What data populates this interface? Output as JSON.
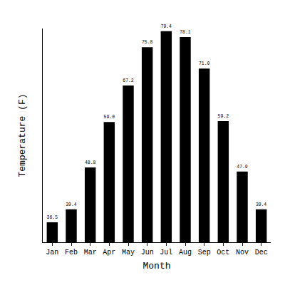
{
  "chart_data": {
    "type": "bar",
    "x_label": "Month",
    "y_label": "Temperature (F)",
    "categories": [
      "Jan",
      "Feb",
      "Mar",
      "Apr",
      "May",
      "Jun",
      "Jul",
      "Aug",
      "Sep",
      "Oct",
      "Nov",
      "Dec"
    ],
    "values": [
      36.5,
      39.4,
      48.8,
      59.0,
      67.2,
      75.8,
      79.4,
      78.1,
      71.0,
      59.2,
      47.9,
      39.4
    ],
    "value_labels": [
      "36.5",
      "39.4",
      "48.8",
      "59.0",
      "67.2",
      "75.8",
      "79.4",
      "78.1",
      "71.0",
      "59.2",
      "47.9",
      "39.4"
    ],
    "color": "#000000",
    "ylim": [
      32,
      80
    ],
    "grid": false,
    "data_labels": true,
    "tick_labels": "x"
  }
}
